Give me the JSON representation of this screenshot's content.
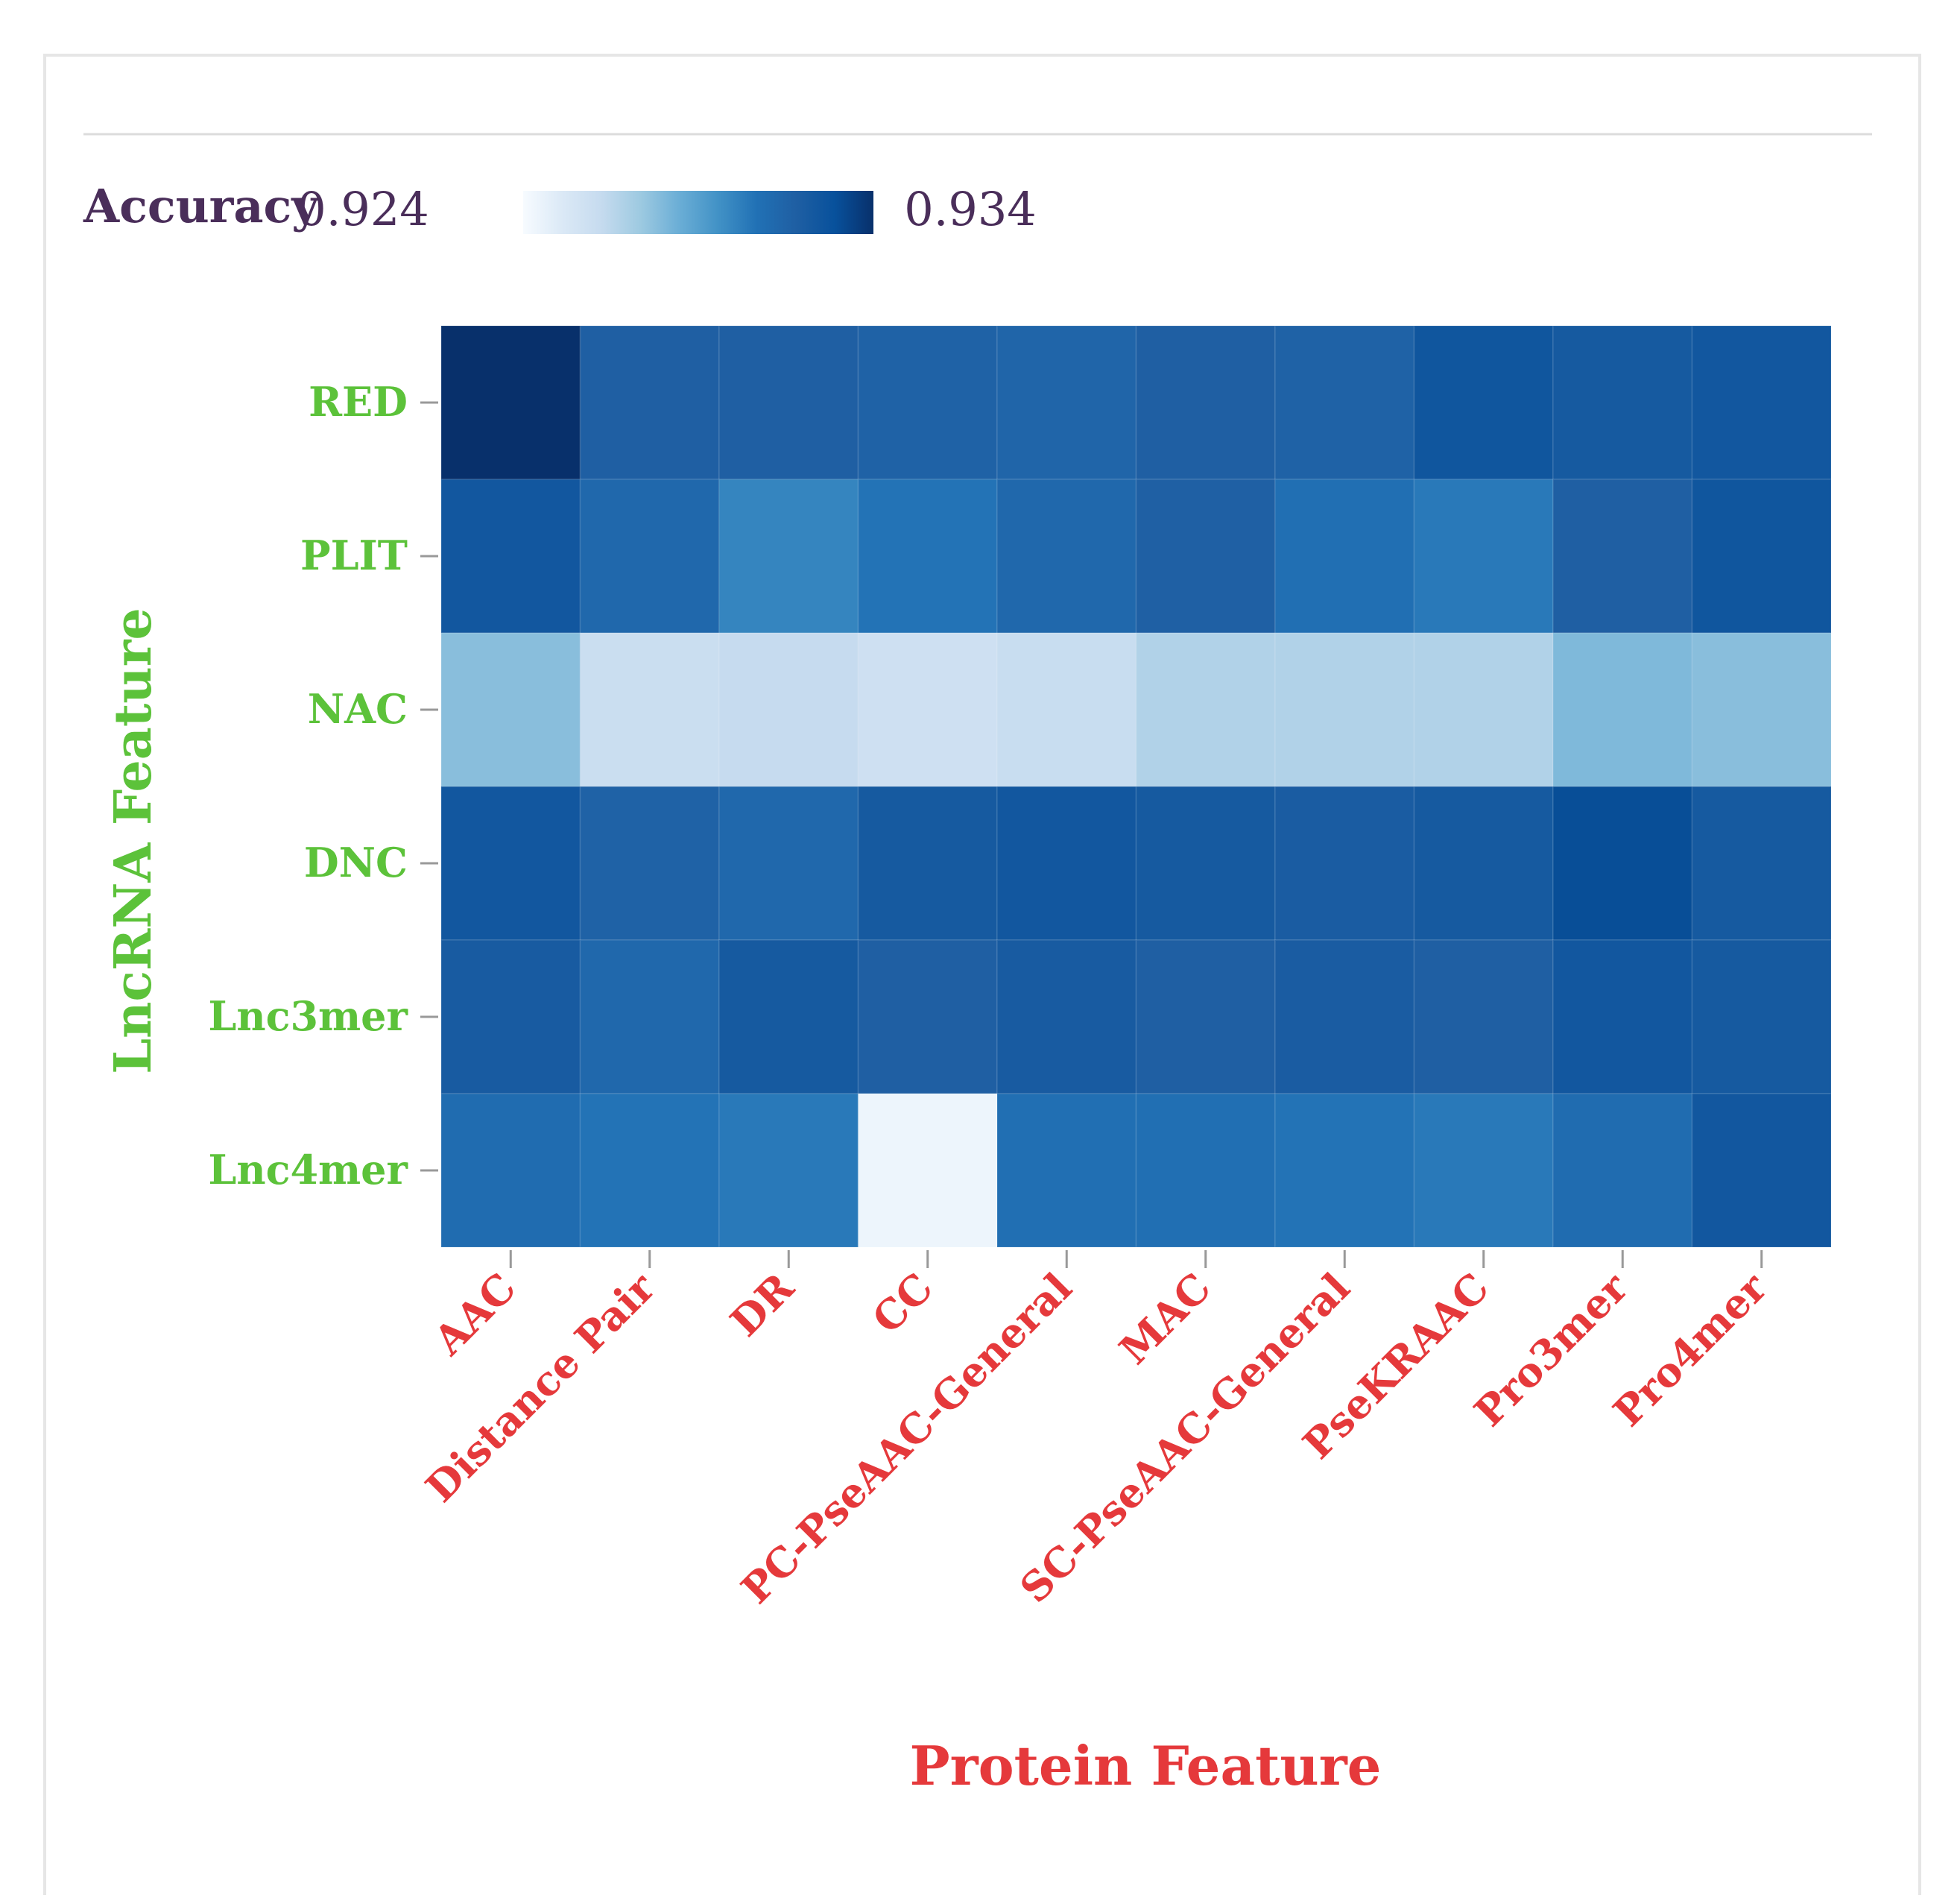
{
  "chart_data": {
    "type": "heatmap",
    "legend": {
      "title": "Accuracy",
      "min_label": "0.924",
      "max_label": "0.934",
      "min": 0.924,
      "max": 0.934
    },
    "xlabel": "Protein Feature",
    "ylabel": "LncRNA Feature",
    "x_categories": [
      "AAC",
      "Distance Pair",
      "DR",
      "CC",
      "PC-PseAAC-General",
      "MAC",
      "SC-PseAAC-General",
      "PseKRAAC",
      "Pro3mer",
      "Pro4mer"
    ],
    "y_categories": [
      "RED",
      "PLIT",
      "NAC",
      "DNC",
      "Lnc3mer",
      "Lnc4mer"
    ],
    "values": [
      [
        0.934,
        0.9318,
        0.9318,
        0.9316,
        0.9314,
        0.9318,
        0.9316,
        0.9325,
        0.9322,
        0.9324
      ],
      [
        0.9324,
        0.9312,
        0.93,
        0.9306,
        0.9312,
        0.9317,
        0.9308,
        0.9304,
        0.9318,
        0.9325
      ],
      [
        0.9278,
        0.926,
        0.9262,
        0.9258,
        0.9261,
        0.9268,
        0.9268,
        0.9268,
        0.928,
        0.9278
      ],
      [
        0.9324,
        0.9316,
        0.9312,
        0.9322,
        0.9324,
        0.9322,
        0.932,
        0.9322,
        0.933,
        0.9322
      ],
      [
        0.9321,
        0.9312,
        0.9322,
        0.9318,
        0.9321,
        0.9318,
        0.932,
        0.9318,
        0.9324,
        0.9322
      ],
      [
        0.931,
        0.9306,
        0.9304,
        0.9244,
        0.9308,
        0.9308,
        0.9306,
        0.9304,
        0.931,
        0.9324
      ]
    ]
  },
  "colorscale": [
    "#f7fbff",
    "#dbe9f6",
    "#c6dbef",
    "#9ecae1",
    "#6baed6",
    "#4292c6",
    "#2171b5",
    "#1f5fa3",
    "#08519c",
    "#08306b"
  ]
}
